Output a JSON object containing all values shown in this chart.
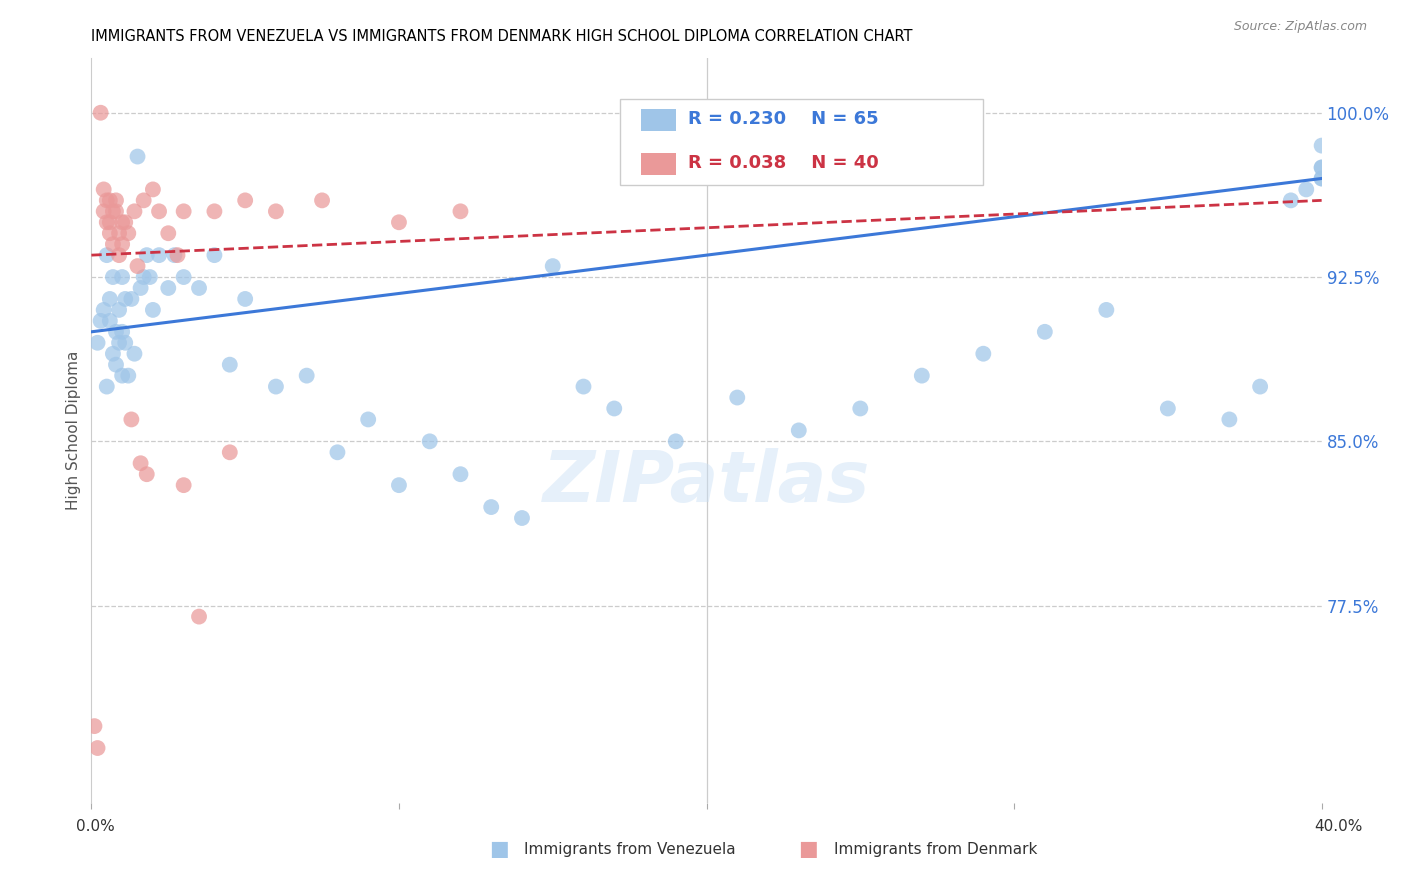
{
  "title": "IMMIGRANTS FROM VENEZUELA VS IMMIGRANTS FROM DENMARK HIGH SCHOOL DIPLOMA CORRELATION CHART",
  "source": "Source: ZipAtlas.com",
  "ylabel": "High School Diploma",
  "yticks": [
    77.5,
    85.0,
    92.5,
    100.0
  ],
  "ytick_labels": [
    "77.5%",
    "85.0%",
    "92.5%",
    "100.0%"
  ],
  "xmin": 0.0,
  "xmax": 40.0,
  "ymin": 68.5,
  "ymax": 102.5,
  "series1_label": "Immigrants from Venezuela",
  "series2_label": "Immigrants from Denmark",
  "color1": "#9fc5e8",
  "color2": "#ea9999",
  "trendline1_color": "#3c78d8",
  "trendline2_color": "#cc3344",
  "background_color": "#ffffff",
  "venezuela_x": [
    0.2,
    0.3,
    0.4,
    0.5,
    0.5,
    0.6,
    0.6,
    0.7,
    0.7,
    0.8,
    0.8,
    0.9,
    0.9,
    1.0,
    1.0,
    1.0,
    1.1,
    1.1,
    1.2,
    1.3,
    1.4,
    1.5,
    1.6,
    1.7,
    1.8,
    1.9,
    2.0,
    2.2,
    2.5,
    2.7,
    3.0,
    3.5,
    4.0,
    4.5,
    5.0,
    6.0,
    7.0,
    8.0,
    9.0,
    10.0,
    11.0,
    12.0,
    13.0,
    14.0,
    15.0,
    16.0,
    17.0,
    19.0,
    21.0,
    23.0,
    25.0,
    27.0,
    29.0,
    31.0,
    33.0,
    35.0,
    37.0,
    38.0,
    39.0,
    39.5,
    40.0,
    40.0,
    40.0,
    40.0,
    40.0
  ],
  "venezuela_y": [
    89.5,
    90.5,
    91.0,
    87.5,
    93.5,
    90.5,
    91.5,
    89.0,
    92.5,
    88.5,
    90.0,
    89.5,
    91.0,
    88.0,
    90.0,
    92.5,
    89.5,
    91.5,
    88.0,
    91.5,
    89.0,
    98.0,
    92.0,
    92.5,
    93.5,
    92.5,
    91.0,
    93.5,
    92.0,
    93.5,
    92.5,
    92.0,
    93.5,
    88.5,
    91.5,
    87.5,
    88.0,
    84.5,
    86.0,
    83.0,
    85.0,
    83.5,
    82.0,
    81.5,
    93.0,
    87.5,
    86.5,
    85.0,
    87.0,
    85.5,
    86.5,
    88.0,
    89.0,
    90.0,
    91.0,
    86.5,
    86.0,
    87.5,
    96.0,
    96.5,
    97.0,
    97.5,
    97.0,
    97.5,
    98.5
  ],
  "denmark_x": [
    0.1,
    0.2,
    0.3,
    0.4,
    0.4,
    0.5,
    0.5,
    0.6,
    0.6,
    0.6,
    0.7,
    0.7,
    0.8,
    0.8,
    0.9,
    0.9,
    1.0,
    1.0,
    1.1,
    1.2,
    1.3,
    1.4,
    1.5,
    1.6,
    1.7,
    1.8,
    2.0,
    2.2,
    2.5,
    2.8,
    3.0,
    3.5,
    4.0,
    5.0,
    6.0,
    7.5,
    10.0,
    12.0,
    3.0,
    4.5
  ],
  "denmark_y": [
    72.0,
    71.0,
    100.0,
    96.5,
    95.5,
    96.0,
    95.0,
    96.0,
    95.0,
    94.5,
    95.5,
    94.0,
    96.0,
    95.5,
    94.5,
    93.5,
    95.0,
    94.0,
    95.0,
    94.5,
    86.0,
    95.5,
    93.0,
    84.0,
    96.0,
    83.5,
    96.5,
    95.5,
    94.5,
    93.5,
    83.0,
    77.0,
    95.5,
    96.0,
    95.5,
    96.0,
    95.0,
    95.5,
    95.5,
    84.5
  ],
  "trendline1_x0": 0.0,
  "trendline1_y0": 90.0,
  "trendline1_x1": 40.0,
  "trendline1_y1": 97.0,
  "trendline2_x0": 0.0,
  "trendline2_y0": 93.5,
  "trendline2_x1": 40.0,
  "trendline2_y1": 96.0
}
